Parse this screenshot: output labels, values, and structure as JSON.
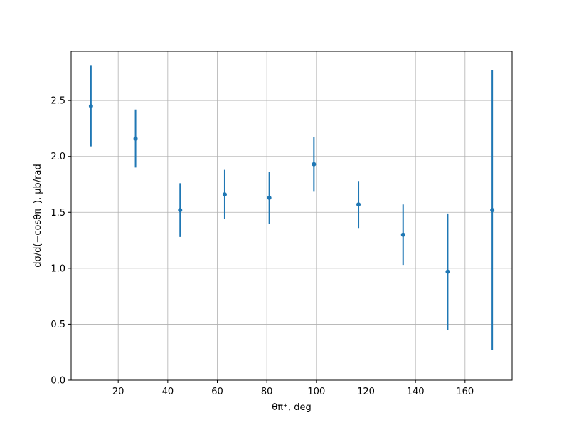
{
  "chart_data": {
    "type": "errorbar",
    "x": [
      9,
      27,
      45,
      63,
      81,
      99,
      117,
      135,
      153,
      171
    ],
    "values": [
      2.45,
      2.16,
      1.52,
      1.66,
      1.63,
      1.93,
      1.57,
      1.3,
      0.97,
      1.52
    ],
    "errors": [
      0.36,
      0.26,
      0.24,
      0.22,
      0.23,
      0.24,
      0.21,
      0.27,
      0.52,
      1.25
    ],
    "color": "#1f77b4",
    "xlim": [
      1,
      179
    ],
    "xticks": [
      20,
      40,
      60,
      80,
      100,
      120,
      140,
      160
    ],
    "ylim": [
      0,
      2.94
    ],
    "yticks": [
      {
        "value": 0,
        "label": "0.0"
      },
      0.5,
      {
        "value": 1,
        "label": "1.0"
      },
      1.5,
      {
        "value": 2,
        "label": "2.0"
      },
      2.5
    ],
    "xlabel": "θπ⁺, deg",
    "ylabel": "dσ/d(−cosθπ⁺), μb/rad",
    "grid": true
  }
}
